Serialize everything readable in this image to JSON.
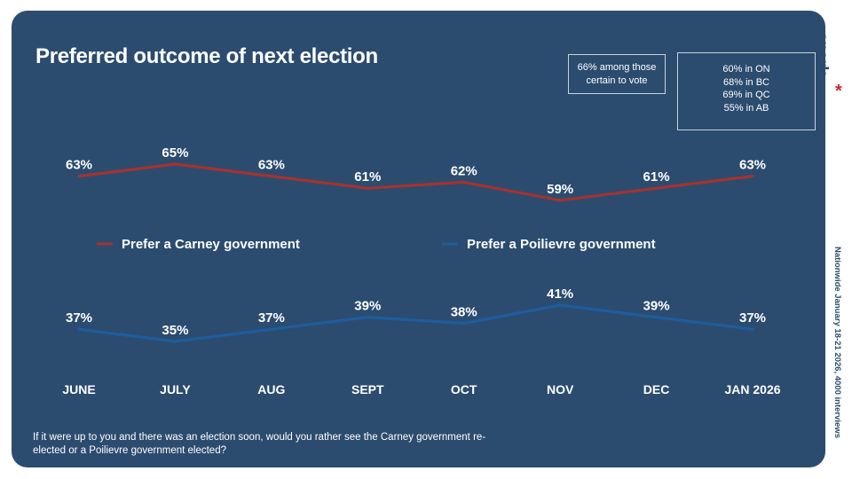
{
  "title": "Preferred outcome of next election",
  "notes": {
    "certain_voters": "66% among those certain to vote",
    "regions": [
      "60% in ON",
      "68% in BC",
      "69% in QC",
      "55%  in AB"
    ]
  },
  "question": "If it were up to you and there was an election soon, would you rather see the Carney government re-elected or a Poilievre government elected?",
  "brand": {
    "name": "spark",
    "mark": "*"
  },
  "source": "Nationwide January 18-21 2026, 4000 interviews",
  "colors": {
    "background": "#2b4c6f",
    "carney": "#a3332f",
    "poilievre": "#1f5c9e",
    "text": "#ffffff"
  },
  "chart_data": {
    "type": "line",
    "title": "Preferred outcome of next election",
    "categories": [
      "JUNE",
      "JULY",
      "AUG",
      "SEPT",
      "OCT",
      "NOV",
      "DEC",
      "JAN 2026"
    ],
    "series": [
      {
        "name": "Prefer a Carney government",
        "color": "#a3332f",
        "values": [
          63,
          65,
          63,
          61,
          62,
          59,
          61,
          63
        ]
      },
      {
        "name": "Prefer a Poilievre government",
        "color": "#1f5c9e",
        "values": [
          37,
          35,
          37,
          39,
          38,
          41,
          39,
          37
        ]
      }
    ],
    "value_suffix": "%",
    "legend": "middle"
  }
}
